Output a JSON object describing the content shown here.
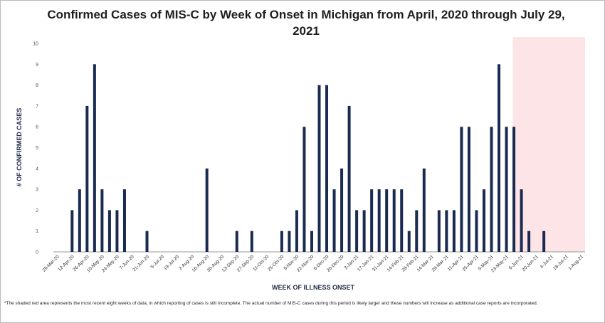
{
  "chart_data": {
    "type": "bar",
    "title": "Confirmed Cases of MIS-C by Week of Onset in Michigan from April, 2020 through July 29, 2021",
    "xlabel": "WEEK OF ILLNESS ONSET",
    "ylabel": "# OF CONFIRMED CASES",
    "ylim": [
      0,
      10
    ],
    "yticks": [
      0,
      1,
      2,
      3,
      4,
      5,
      6,
      7,
      8,
      9,
      10
    ],
    "grid": false,
    "legend": "none",
    "x_tick_labels": [
      "29-Mar-20",
      "12-Apr-20",
      "26-Apr-20",
      "10-May-20",
      "24-May-20",
      "7-Jun-20",
      "21-Jun-20",
      "5-Jul-20",
      "19-Jul-20",
      "2-Aug-20",
      "16-Aug-20",
      "30-Aug-20",
      "13-Sep-20",
      "27-Sep-20",
      "11-Oct-20",
      "25-Oct-20",
      "8-Nov-20",
      "22-Nov-20",
      "6-Dec-20",
      "20-Dec-20",
      "3-Jan-21",
      "17-Jan-21",
      "31-Jan-21",
      "14-Feb-21",
      "28-Feb-21",
      "14-Mar-21",
      "28-Mar-21",
      "11-Apr-21",
      "25-Apr-21",
      "9-May-21",
      "23-May-21",
      "6-Jun-21",
      "20-Jun-21",
      "4-Jul-21",
      "18-Jul-21",
      "1-Aug-21"
    ],
    "weeks": [
      "29-Mar-20",
      "5-Apr-20",
      "12-Apr-20",
      "19-Apr-20",
      "26-Apr-20",
      "3-May-20",
      "10-May-20",
      "17-May-20",
      "24-May-20",
      "31-May-20",
      "7-Jun-20",
      "14-Jun-20",
      "21-Jun-20",
      "28-Jun-20",
      "5-Jul-20",
      "12-Jul-20",
      "19-Jul-20",
      "26-Jul-20",
      "2-Aug-20",
      "9-Aug-20",
      "16-Aug-20",
      "23-Aug-20",
      "30-Aug-20",
      "6-Sep-20",
      "13-Sep-20",
      "20-Sep-20",
      "27-Sep-20",
      "4-Oct-20",
      "11-Oct-20",
      "18-Oct-20",
      "25-Oct-20",
      "1-Nov-20",
      "8-Nov-20",
      "15-Nov-20",
      "22-Nov-20",
      "29-Nov-20",
      "6-Dec-20",
      "13-Dec-20",
      "20-Dec-20",
      "27-Dec-20",
      "3-Jan-21",
      "10-Jan-21",
      "17-Jan-21",
      "24-Jan-21",
      "31-Jan-21",
      "7-Feb-21",
      "14-Feb-21",
      "21-Feb-21",
      "28-Feb-21",
      "7-Mar-21",
      "14-Mar-21",
      "21-Mar-21",
      "28-Mar-21",
      "4-Apr-21",
      "11-Apr-21",
      "18-Apr-21",
      "25-Apr-21",
      "2-May-21",
      "9-May-21",
      "16-May-21",
      "23-May-21",
      "30-May-21",
      "6-Jun-21",
      "13-Jun-21",
      "20-Jun-21",
      "27-Jun-21",
      "4-Jul-21",
      "11-Jul-21",
      "18-Jul-21",
      "25-Jul-21",
      "1-Aug-21"
    ],
    "values": [
      0,
      0,
      2,
      3,
      7,
      9,
      3,
      2,
      2,
      3,
      0,
      0,
      1,
      0,
      0,
      0,
      0,
      0,
      0,
      0,
      4,
      0,
      0,
      0,
      1,
      0,
      1,
      0,
      0,
      0,
      1,
      1,
      2,
      6,
      1,
      8,
      8,
      3,
      4,
      7,
      2,
      2,
      3,
      3,
      3,
      3,
      3,
      1,
      2,
      4,
      0,
      2,
      2,
      2,
      6,
      6,
      2,
      3,
      6,
      9,
      6,
      6,
      3,
      1,
      0,
      1,
      0,
      0,
      0,
      0,
      0
    ],
    "shaded_region": {
      "start": "30-May-21",
      "end": "1-Aug-21",
      "color": "#fde4e6"
    },
    "bar_color": "#1a2a50",
    "footnote": "*The shaded red area represents the most recent eight weeks of data, in which reporting of cases is still incomplete. The actual number of MIS-C cases during this period is likely larger and these numbers will increase as additional case reports are incorporated."
  }
}
